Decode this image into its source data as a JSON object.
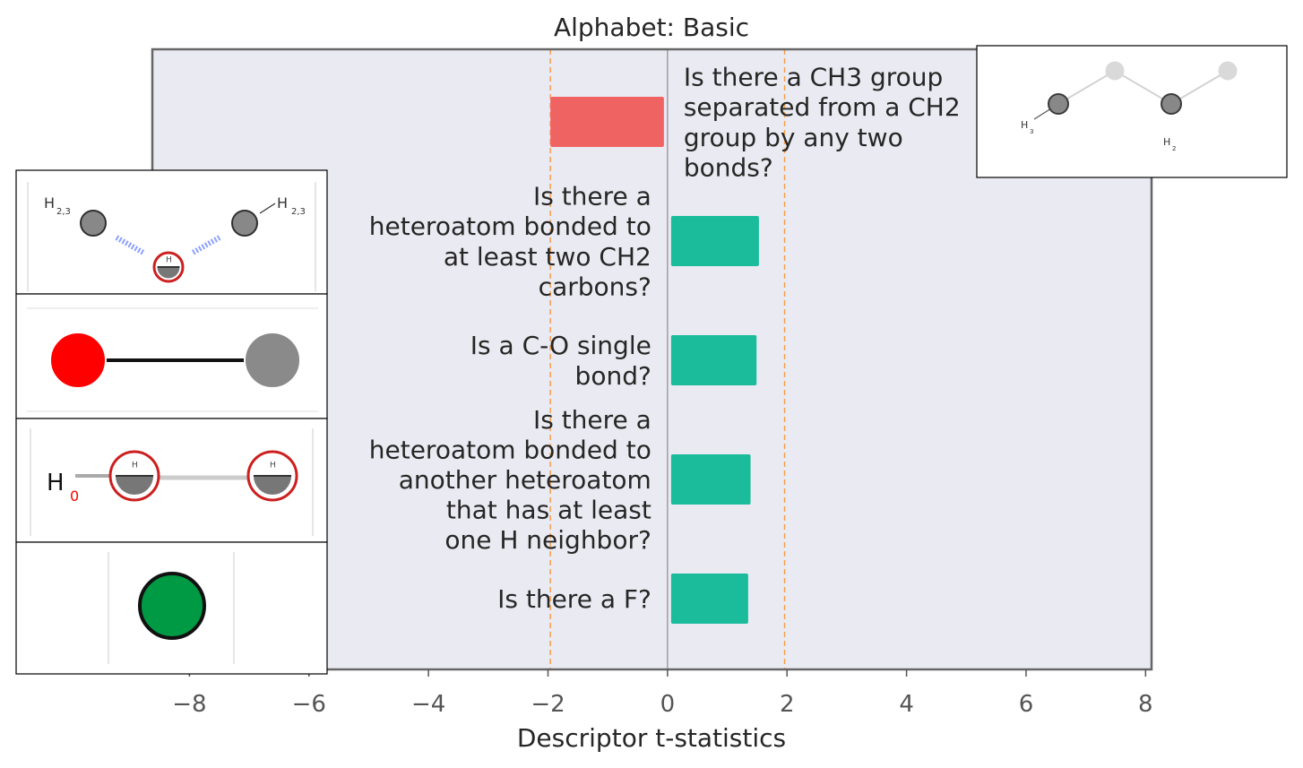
{
  "chart_data": {
    "type": "bar",
    "orientation": "horizontal",
    "title": "Alphabet: Basic",
    "xlabel": "Descriptor t-statistics",
    "ylabel": "",
    "xlim": [
      -10.9,
      8.1
    ],
    "xticks": [
      -8,
      -6,
      -4,
      -2,
      0,
      2,
      4,
      6,
      8
    ],
    "xtick_labels": [
      "−8",
      "−6",
      "−4",
      "−2",
      "0",
      "2",
      "4",
      "6",
      "8"
    ],
    "grid": false,
    "threshold_lines": [
      -1.96,
      1.96
    ],
    "categories": [
      [
        "Is there a CH3 group",
        "separated from a CH2",
        "group by any two",
        "bonds?"
      ],
      [
        "Is there a",
        "heteroatom bonded to",
        "at least two CH2",
        "carbons?"
      ],
      [
        "Is a C-O single",
        "bond?"
      ],
      [
        "Is there a",
        "heteroatom bonded to",
        "another heteroatom",
        "that has at least",
        "one H neighbor?"
      ],
      [
        "Is there a F?"
      ]
    ],
    "values": [
      -1.96,
      1.53,
      1.49,
      1.39,
      1.35
    ],
    "colors": {
      "negative": "#f06363",
      "positive": "#1abc9c",
      "threshold_line": "#f5a04a",
      "zero_line": "#8c8c8c",
      "plot_background": "#eaeaf2",
      "frame": "#666666"
    },
    "molecule_insets": [
      {
        "side": "right",
        "icon": "ch3-ch2-fragment-icon",
        "atom_labels": [
          "H",
          "3",
          "H",
          "2"
        ]
      },
      {
        "side": "left",
        "icon": "heteroatom-two-ch2-fragment-icon",
        "atom_labels": [
          "H",
          "2,3",
          "H",
          "2,3"
        ]
      },
      {
        "side": "left",
        "icon": "c-o-single-bond-icon",
        "atom_labels": []
      },
      {
        "side": "left",
        "icon": "heteroatom-heteroatom-h-fragment-icon",
        "atom_labels": [
          "H",
          "0",
          "H",
          "H"
        ]
      },
      {
        "side": "left",
        "icon": "fluorine-atom-icon",
        "atom_labels": []
      }
    ]
  }
}
